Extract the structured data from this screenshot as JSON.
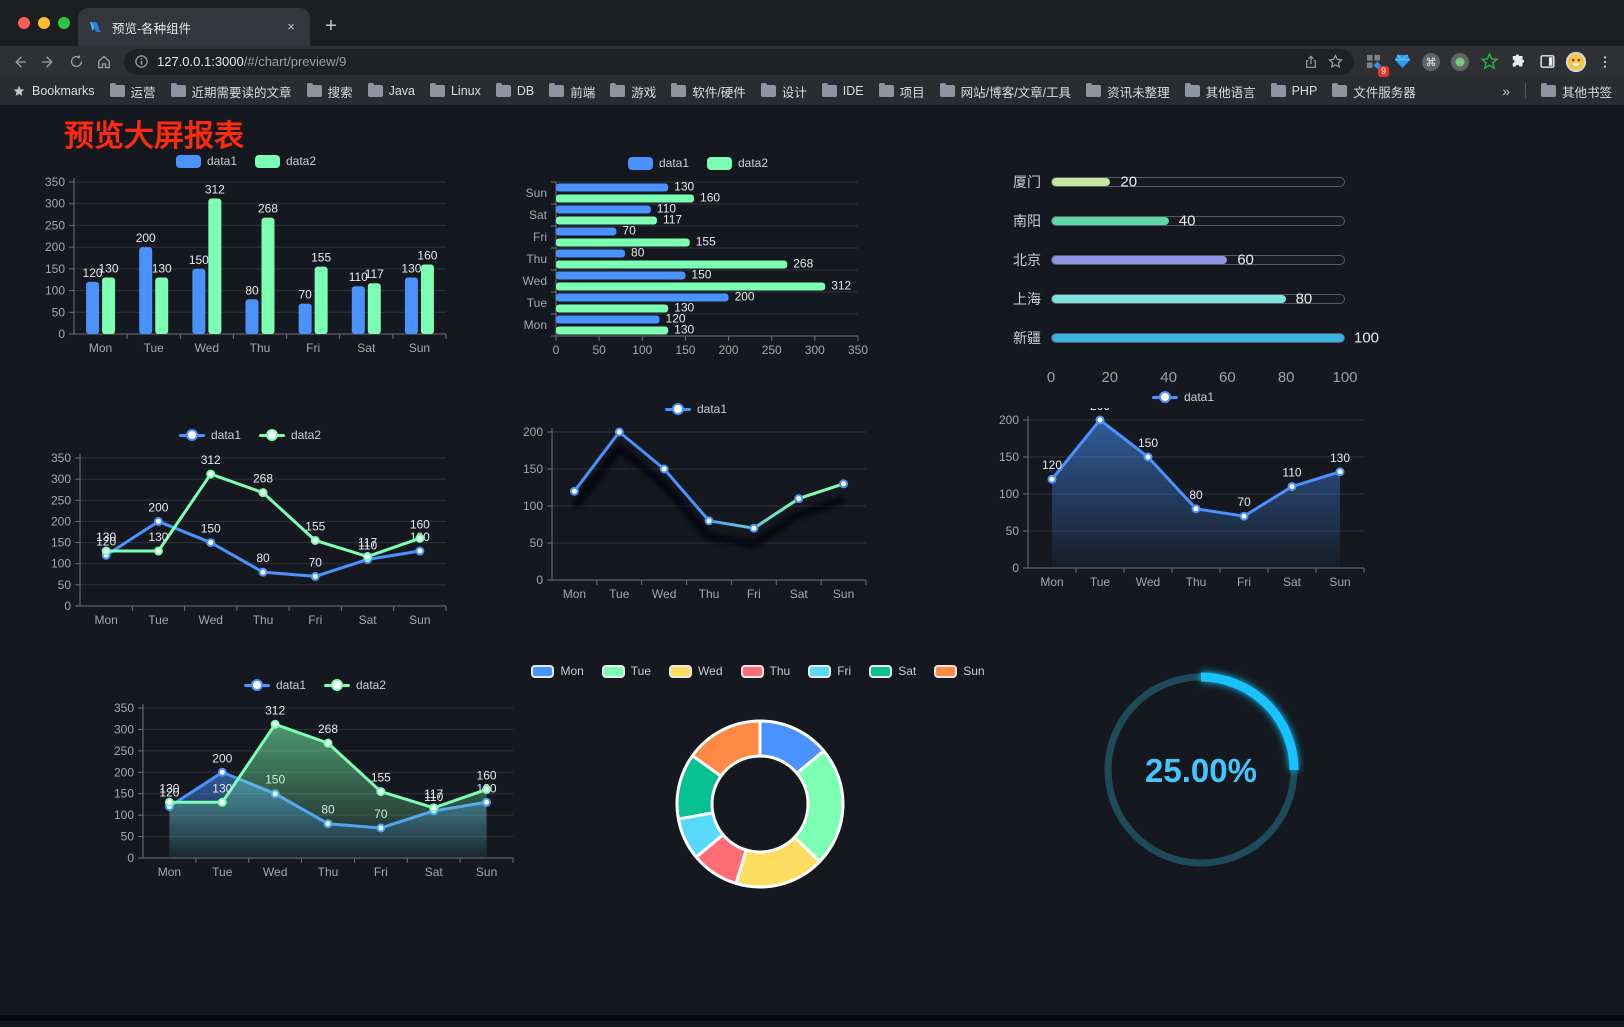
{
  "browser": {
    "tab_title": "预览-各种组件",
    "new_tab_label": "+",
    "close_label": "×",
    "url_host": "127.0.0.1:3000",
    "url_path": "/#/chart/preview/9",
    "extension_badge": "9",
    "bookmarks_label": "Bookmarks",
    "bookmark_folders": [
      "运营",
      "近期需要读的文章",
      "搜索",
      "Java",
      "Linux",
      "DB",
      "前端",
      "游戏",
      "软件/硬件",
      "设计",
      "IDE",
      "项目",
      "网站/博客/文章/工具",
      "资讯未整理",
      "其他语言",
      "PHP",
      "文件服务器"
    ],
    "bookmarks_overflow": "»",
    "other_bookmarks": "其他书签"
  },
  "page": {
    "title": "预览大屏报表",
    "title_color": "#fd2a0d"
  },
  "palette": {
    "blue": "#4992ff",
    "green": "#7cffb2",
    "yellow": "#fddd60",
    "red": "#ff6e76",
    "skyblue": "#58d9f9",
    "teal": "#05c091",
    "orange": "#ff8a45",
    "axis_label": "#a2a8b4",
    "axis_line": "#6e7079",
    "grid_line": "#31343d",
    "value_label": "#e6e9f0"
  },
  "chart_data": [
    {
      "id": "c1",
      "type": "bar",
      "categories": [
        "Mon",
        "Tue",
        "Wed",
        "Thu",
        "Fri",
        "Sat",
        "Sun"
      ],
      "series": [
        {
          "name": "data1",
          "values": [
            120,
            200,
            150,
            80,
            70,
            110,
            130
          ],
          "color": "#4992ff"
        },
        {
          "name": "data2",
          "values": [
            130,
            130,
            312,
            268,
            155,
            117,
            160
          ],
          "color": "#7cffb2"
        }
      ],
      "ylim": [
        0,
        350
      ],
      "ystep": 50,
      "labels": true,
      "legend_position": "top",
      "grid": true
    },
    {
      "id": "c2",
      "type": "hbar",
      "categories": [
        "Mon",
        "Tue",
        "Wed",
        "Thu",
        "Fri",
        "Sat",
        "Sun"
      ],
      "series": [
        {
          "name": "data1",
          "values": [
            120,
            200,
            150,
            80,
            70,
            110,
            130
          ],
          "color": "#4992ff"
        },
        {
          "name": "data2",
          "values": [
            130,
            130,
            312,
            268,
            155,
            117,
            160
          ],
          "color": "#7cffb2"
        }
      ],
      "xlim": [
        0,
        350
      ],
      "xstep": 50,
      "labels": true,
      "legend_position": "top",
      "grid": true
    },
    {
      "id": "c3",
      "type": "progress",
      "categories": [
        "厦门",
        "南阳",
        "北京",
        "上海",
        "新疆"
      ],
      "values": [
        20,
        40,
        60,
        80,
        100
      ],
      "colors": [
        "#c5e8a2",
        "#5fd8a5",
        "#8e95e5",
        "#7de5e0",
        "#38b2e0"
      ],
      "xlim": [
        0,
        100
      ],
      "xstep": 20
    },
    {
      "id": "c4",
      "type": "line",
      "categories": [
        "Mon",
        "Tue",
        "Wed",
        "Thu",
        "Fri",
        "Sat",
        "Sun"
      ],
      "series": [
        {
          "name": "data1",
          "values": [
            120,
            200,
            150,
            80,
            70,
            110,
            130
          ],
          "color": "#4992ff"
        },
        {
          "name": "data2",
          "values": [
            130,
            130,
            312,
            268,
            155,
            117,
            160
          ],
          "color": "#7cffb2"
        }
      ],
      "ylim": [
        0,
        350
      ],
      "ystep": 50,
      "labels": true,
      "legend_position": "top",
      "grid": true
    },
    {
      "id": "c5",
      "type": "line",
      "categories": [
        "Mon",
        "Tue",
        "Wed",
        "Thu",
        "Fri",
        "Sat",
        "Sun"
      ],
      "series": [
        {
          "name": "data1",
          "values": [
            120,
            200,
            150,
            80,
            70,
            110,
            130
          ],
          "color_gradient": [
            "#4992ff",
            "#7cffb2"
          ],
          "shadow": true
        }
      ],
      "ylim": [
        0,
        200
      ],
      "ystep": 50,
      "labels": false,
      "legend_position": "top",
      "grid": true
    },
    {
      "id": "c6",
      "type": "line",
      "categories": [
        "Mon",
        "Tue",
        "Wed",
        "Thu",
        "Fri",
        "Sat",
        "Sun"
      ],
      "series": [
        {
          "name": "data1",
          "values": [
            120,
            200,
            150,
            80,
            70,
            110,
            130
          ],
          "color": "#4992ff",
          "area": true
        }
      ],
      "ylim": [
        0,
        200
      ],
      "ystep": 50,
      "labels": true,
      "legend_position": "top",
      "grid": true
    },
    {
      "id": "c7",
      "type": "line",
      "categories": [
        "Mon",
        "Tue",
        "Wed",
        "Thu",
        "Fri",
        "Sat",
        "Sun"
      ],
      "series": [
        {
          "name": "data1",
          "values": [
            120,
            200,
            150,
            80,
            70,
            110,
            130
          ],
          "color": "#4992ff",
          "area": true
        },
        {
          "name": "data2",
          "values": [
            130,
            130,
            312,
            268,
            155,
            117,
            160
          ],
          "color": "#7cffb2",
          "area": true
        }
      ],
      "ylim": [
        0,
        350
      ],
      "ystep": 50,
      "labels": true,
      "legend_position": "top",
      "grid": true
    },
    {
      "id": "c8",
      "type": "donut",
      "categories": [
        "Mon",
        "Tue",
        "Wed",
        "Thu",
        "Fri",
        "Sat",
        "Sun"
      ],
      "values": [
        120,
        200,
        150,
        80,
        70,
        110,
        130
      ],
      "colors": [
        "#4992ff",
        "#7cffb2",
        "#fddd60",
        "#ff6e76",
        "#58d9f9",
        "#05c091",
        "#ff8a45"
      ],
      "legend_position": "top"
    },
    {
      "id": "c9",
      "type": "gauge",
      "value": 25,
      "max": 100,
      "detail": "25.00%",
      "track_color": "#1d4b59",
      "progress_color": "#18c2ff",
      "text_color": "#42c8ff"
    }
  ]
}
